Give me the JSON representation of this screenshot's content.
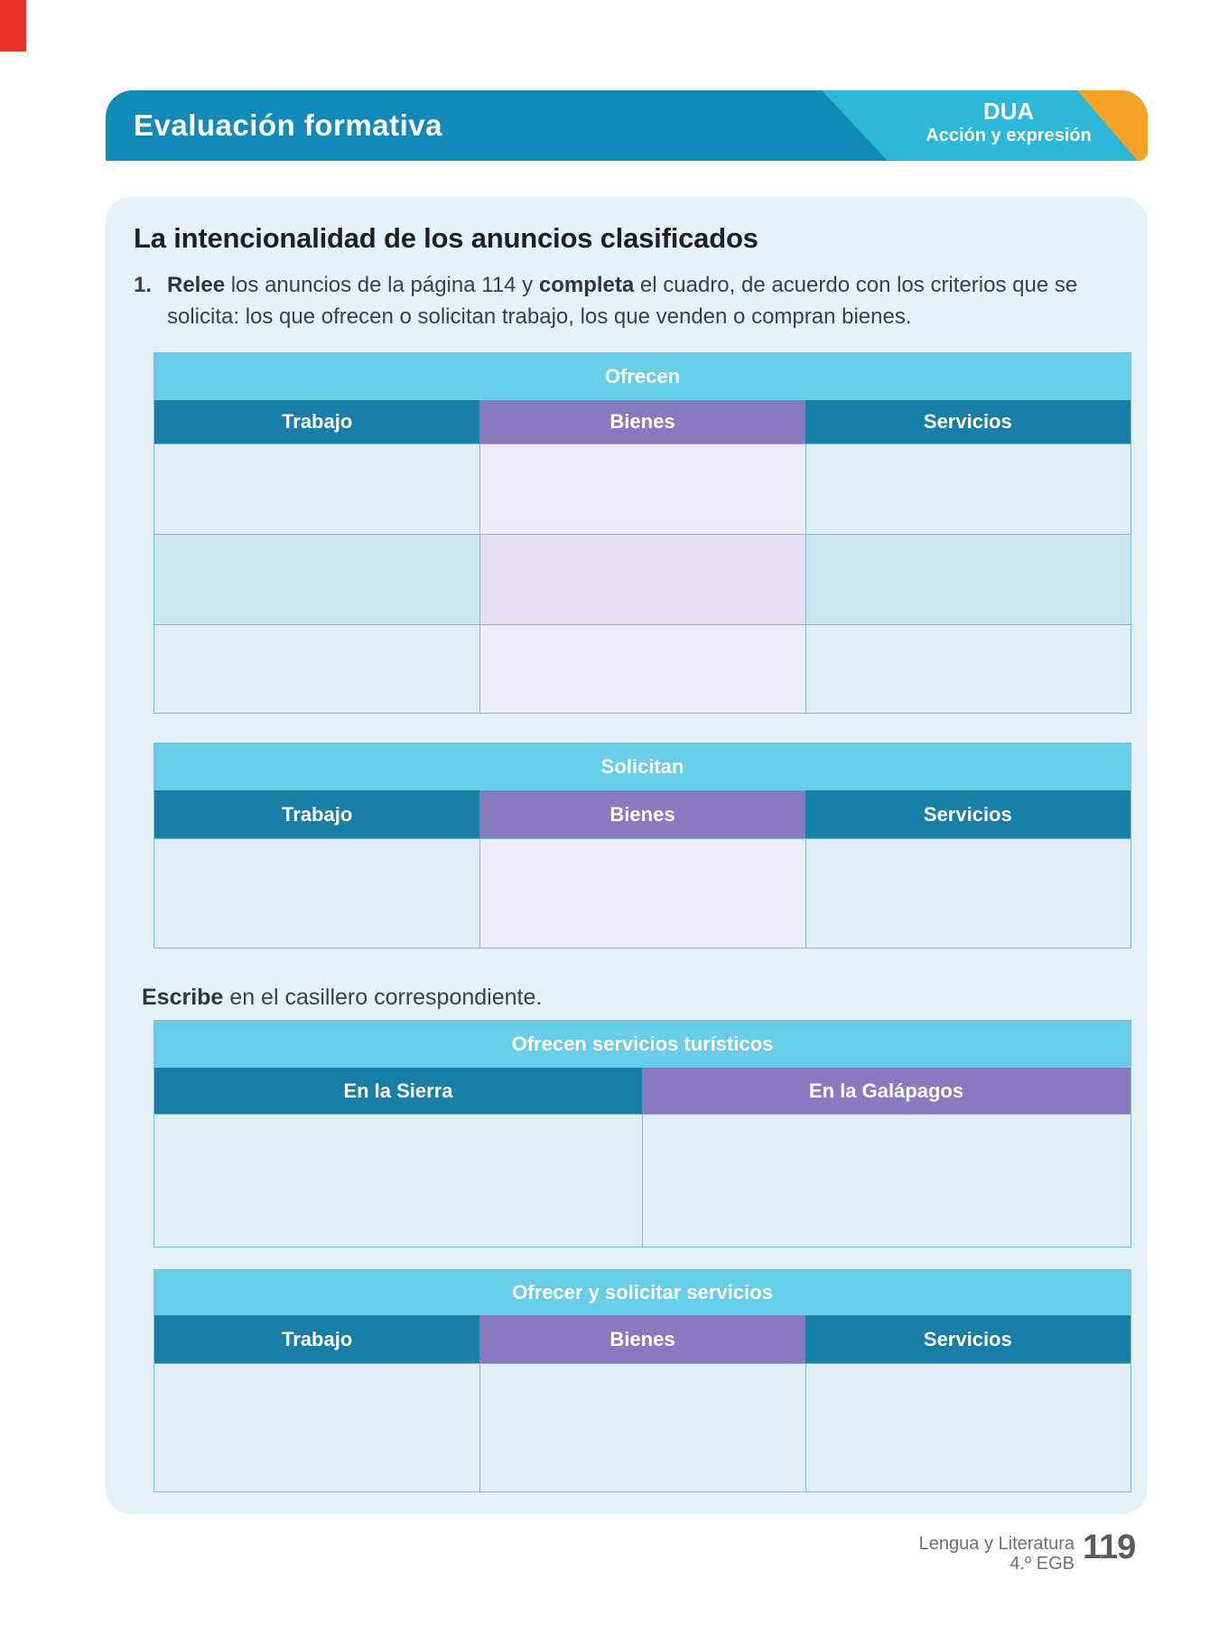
{
  "header": {
    "title": "Evaluación formativa",
    "badge_title": "DUA",
    "badge_subtitle": "Acción y expresión"
  },
  "section": {
    "title": "La intencionalidad de los anuncios clasificados"
  },
  "exercise": {
    "number": "1.",
    "segments": [
      {
        "text": "Relee",
        "bold": true
      },
      {
        "text": " los anuncios de la página 114 y ",
        "bold": false
      },
      {
        "text": "completa",
        "bold": true
      },
      {
        "text": " el cuadro, de acuerdo con los criterios que se solicita: los que ofrecen o solicitan trabajo, los que venden o compran bienes.",
        "bold": false
      }
    ]
  },
  "escribe": {
    "segments": [
      {
        "text": "Escribe",
        "bold": true
      },
      {
        "text": " en el casillero correspondiente.",
        "bold": false
      }
    ]
  },
  "tables": [
    {
      "title": "Ofrecen",
      "columns": [
        "Trabajo",
        "Bienes",
        "Servicios"
      ],
      "body_rows": 3
    },
    {
      "title": "Solicitan",
      "columns": [
        "Trabajo",
        "Bienes",
        "Servicios"
      ],
      "body_rows": 1
    },
    {
      "title": "Ofrecen servicios turísticos",
      "columns": [
        "En la Sierra",
        "En la Galápagos"
      ],
      "body_rows": 1
    },
    {
      "title": "Ofrecer y solicitar servicios",
      "columns": [
        "Trabajo",
        "Bienes",
        "Servicios"
      ],
      "body_rows": 1
    }
  ],
  "footer": {
    "series": "Lengua y Literatura",
    "grade": "4.º EGB",
    "page_number": "119"
  },
  "colors": {
    "banner_teal": "#128ab8",
    "banner_cyan": "#2db7d8",
    "banner_orange": "#f5a327",
    "table_band_cyan": "#68cde6",
    "column_teal": "#187ea7",
    "column_purple": "#8879c1",
    "card_background": "#e4f1f7",
    "cell_blue": "#e1eef5",
    "cell_blue_dark": "#c9e3ef",
    "cell_lavender": "#efecf9",
    "cell_lavender_dark": "#e4def2",
    "corner_mark_red": "#e8332a"
  }
}
